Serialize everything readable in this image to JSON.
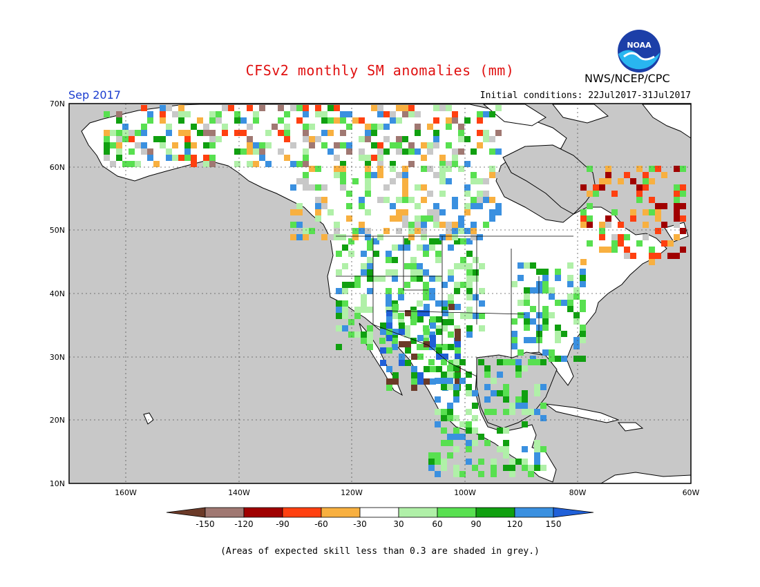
{
  "header": {
    "title": "CFSv2 monthly SM anomalies (mm)",
    "agency": "NWS/NCEP/CPC",
    "period": "Sep 2017",
    "initial_conditions": "Initial conditions: 22Jul2017-31Jul2017",
    "logo_text": "NOAA"
  },
  "map": {
    "lon_range": [
      -170,
      -60
    ],
    "lat_range": [
      10,
      70
    ],
    "lat_labels": [
      "70N",
      "60N",
      "50N",
      "40N",
      "30N",
      "20N",
      "10N"
    ],
    "lon_labels": [
      "160W",
      "140W",
      "120W",
      "100W",
      "80W",
      "60W"
    ],
    "ocean_color": "#c8c8c8",
    "land_color": "#ffffff"
  },
  "colorbar": {
    "labels": [
      "-150",
      "-120",
      "-90",
      "-60",
      "-30",
      "30",
      "60",
      "90",
      "120",
      "150"
    ],
    "colors": [
      "#6b3a28",
      "#a07872",
      "#a00000",
      "#e03000",
      "#ff4010",
      "#f8b040",
      "#ffffff",
      "#b0f0a8",
      "#58e050",
      "#10a010",
      "#3a90e0",
      "#2060d8"
    ]
  },
  "footnote": "(Areas of expected skill less than 0.3 are shaded in grey.)"
}
